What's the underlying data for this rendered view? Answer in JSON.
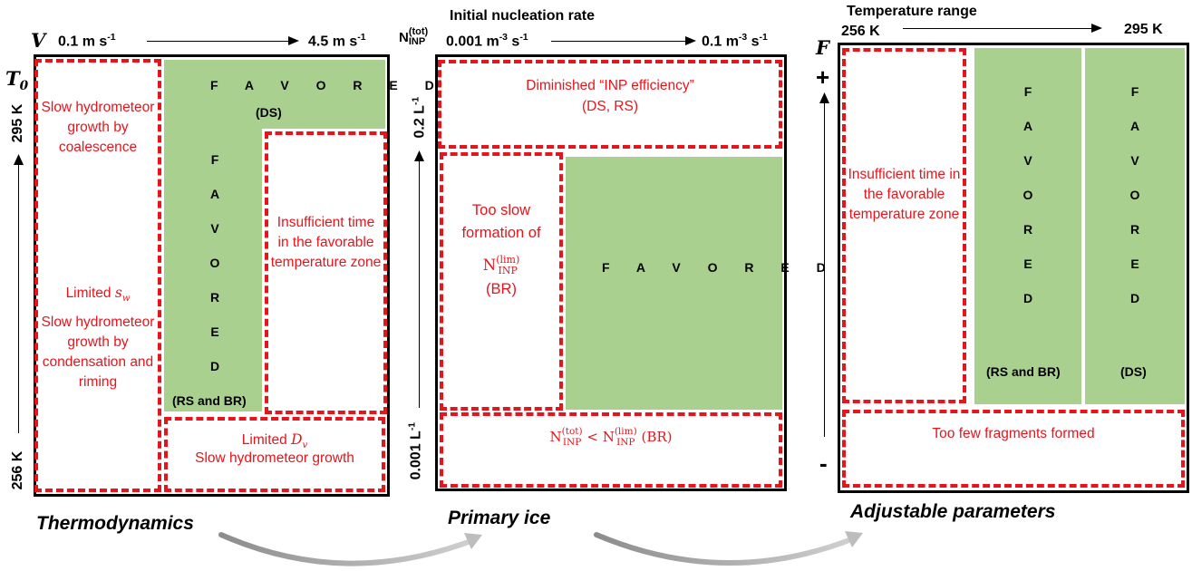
{
  "panel1": {
    "top_symbol": "V",
    "top_min": "0.1 m s",
    "top_min_exp": "-1",
    "top_max": "4.5 m s",
    "top_max_exp": "-1",
    "left_symbol": "T",
    "left_symbol_sub": "0",
    "left_top": "295 K",
    "left_bottom": "256 K",
    "favored_h": "F A V O R E D",
    "favored_h_note": "(DS)",
    "favored_v": [
      "F",
      "A",
      "V",
      "O",
      "R",
      "E",
      "D"
    ],
    "favored_v_note": "(RS and BR)",
    "box_slow_coalescence": "Slow hydrometeor growth by coalescence",
    "box_limited_sw_prefix": "Limited ",
    "box_limited_sw_sym": "s",
    "box_limited_sw_sub": "w",
    "box_slow_condensation": "Slow hydrometeor growth by condensation and riming",
    "box_insufficient": "Insufficient time in the favorable temperature zone",
    "box_limited_dv_prefix": "Limited ",
    "box_limited_dv_sym": "D",
    "box_limited_dv_sub": "v",
    "box_limited_dv_text": "Slow hydrometeor growth",
    "caption": "Thermodynamics"
  },
  "panel2": {
    "header": "Initial nucleation rate",
    "top_symbol": "N",
    "top_symbol_sup": "(tot)",
    "top_symbol_sub": "INP",
    "top_min": "0.001 m",
    "top_min_exp": "-3",
    "top_min_tail": " s",
    "top_min_tail_exp": "-1",
    "top_max": "0.1 m",
    "top_max_exp": "-3",
    "top_max_tail": " s",
    "top_max_tail_exp": "-1",
    "left_top": "0.2 L",
    "left_top_exp": "-1",
    "left_bottom": "0.001 L",
    "left_bottom_exp": "-1",
    "favored": "F A V O R E D",
    "box_diminished": "Diminished “INP efficiency”",
    "box_diminished_note": "(DS, RS)",
    "box_too_slow": "Too slow formation of",
    "box_too_slow_sym": "N",
    "box_too_slow_sup": "(lim)",
    "box_too_slow_sub": "INP",
    "box_too_slow_note": "(BR)",
    "box_lt_left_sym": "N",
    "box_lt_left_sup": "(tot)",
    "box_lt_left_sub": "INP",
    "box_lt_op": " < ",
    "box_lt_right_sym": "N",
    "box_lt_right_sup": "(lim)",
    "box_lt_right_sub": "INP",
    "box_lt_note": " (BR)",
    "caption": "Primary ice"
  },
  "panel3": {
    "header": "Temperature range",
    "top_min": "256 K",
    "top_max": "295 K",
    "left_symbol": "F",
    "plus": "+",
    "minus": "-",
    "favored_col1": [
      "F",
      "A",
      "V",
      "O",
      "R",
      "E",
      "D"
    ],
    "favored_col1_note": "(RS and BR)",
    "favored_col2": [
      "F",
      "A",
      "V",
      "O",
      "R",
      "E",
      "D"
    ],
    "favored_col2_note": "(DS)",
    "box_insufficient": "Insufficient time in the favorable temperature zone",
    "box_few_fragments": "Too few fragments formed",
    "caption": "Adjustable parameters"
  },
  "colors": {
    "favored_green": "#a9d08e",
    "limit_red": "#e8141b",
    "flow_arrow_gray": "#a6a6a6"
  }
}
